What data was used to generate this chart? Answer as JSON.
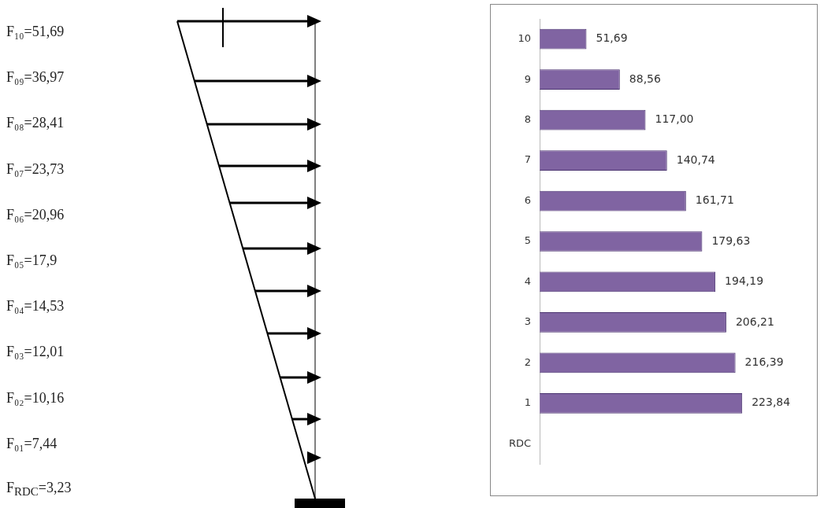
{
  "chart_data": [
    {
      "type": "other",
      "annotations": [
        "F₁₀=51,69",
        "F₀₉=36,97",
        "F₀₈=28,41",
        "F₀₇=23,73",
        "F₀₆=20,96",
        "F₀₅=17,9",
        "F₀₄=14,53",
        "F₀₃=12,01",
        "F₀₂=10,16",
        "F₀₁=7,44",
        "F$_{RDC}$=3,23"
      ]
    },
    {
      "type": "bar",
      "orientation": "horizontal",
      "categories": [
        "10",
        "9",
        "8",
        "7",
        "6",
        "5",
        "4",
        "3",
        "2",
        "1",
        "RDC"
      ],
      "values": [
        51.69,
        88.56,
        117.0,
        140.74,
        161.71,
        179.63,
        194.19,
        206.21,
        216.39,
        223.84,
        null
      ],
      "value_labels": [
        "51,69",
        "88,56",
        "117,00",
        "140,74",
        "161,71",
        "179,63",
        "194,19",
        "206,21",
        "216,39",
        "223,84",
        null
      ],
      "color": "#8064a2",
      "legend": false
    }
  ]
}
